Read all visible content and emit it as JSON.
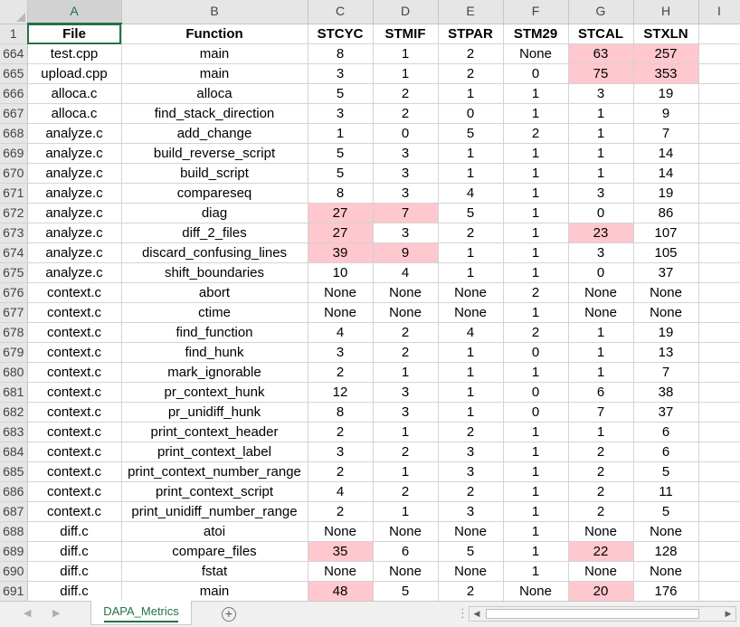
{
  "sheet": {
    "column_letters": [
      "A",
      "B",
      "C",
      "D",
      "E",
      "F",
      "G",
      "H",
      "I"
    ],
    "active_column": "A",
    "header_row": {
      "num": "1",
      "cells": [
        "File",
        "Function",
        "STCYC",
        "STMIF",
        "STPAR",
        "STM29",
        "STCAL",
        "STXLN",
        ""
      ]
    },
    "rows": [
      {
        "num": "664",
        "cells": [
          "test.cpp",
          "main",
          "8",
          "1",
          "2",
          "None",
          "63",
          "257",
          ""
        ]
      },
      {
        "num": "665",
        "cells": [
          "upload.cpp",
          "main",
          "3",
          "1",
          "2",
          "0",
          "75",
          "353",
          ""
        ]
      },
      {
        "num": "666",
        "cells": [
          "alloca.c",
          "alloca",
          "5",
          "2",
          "1",
          "1",
          "3",
          "19",
          ""
        ]
      },
      {
        "num": "667",
        "cells": [
          "alloca.c",
          "find_stack_direction",
          "3",
          "2",
          "0",
          "1",
          "1",
          "9",
          ""
        ]
      },
      {
        "num": "668",
        "cells": [
          "analyze.c",
          "add_change",
          "1",
          "0",
          "5",
          "2",
          "1",
          "7",
          ""
        ]
      },
      {
        "num": "669",
        "cells": [
          "analyze.c",
          "build_reverse_script",
          "5",
          "3",
          "1",
          "1",
          "1",
          "14",
          ""
        ]
      },
      {
        "num": "670",
        "cells": [
          "analyze.c",
          "build_script",
          "5",
          "3",
          "1",
          "1",
          "1",
          "14",
          ""
        ]
      },
      {
        "num": "671",
        "cells": [
          "analyze.c",
          "compareseq",
          "8",
          "3",
          "4",
          "1",
          "3",
          "19",
          ""
        ]
      },
      {
        "num": "672",
        "cells": [
          "analyze.c",
          "diag",
          "27",
          "7",
          "5",
          "1",
          "0",
          "86",
          ""
        ]
      },
      {
        "num": "673",
        "cells": [
          "analyze.c",
          "diff_2_files",
          "27",
          "3",
          "2",
          "1",
          "23",
          "107",
          ""
        ]
      },
      {
        "num": "674",
        "cells": [
          "analyze.c",
          "discard_confusing_lines",
          "39",
          "9",
          "1",
          "1",
          "3",
          "105",
          ""
        ]
      },
      {
        "num": "675",
        "cells": [
          "analyze.c",
          "shift_boundaries",
          "10",
          "4",
          "1",
          "1",
          "0",
          "37",
          ""
        ]
      },
      {
        "num": "676",
        "cells": [
          "context.c",
          "abort",
          "None",
          "None",
          "None",
          "2",
          "None",
          "None",
          ""
        ]
      },
      {
        "num": "677",
        "cells": [
          "context.c",
          "ctime",
          "None",
          "None",
          "None",
          "1",
          "None",
          "None",
          ""
        ]
      },
      {
        "num": "678",
        "cells": [
          "context.c",
          "find_function",
          "4",
          "2",
          "4",
          "2",
          "1",
          "19",
          ""
        ]
      },
      {
        "num": "679",
        "cells": [
          "context.c",
          "find_hunk",
          "3",
          "2",
          "1",
          "0",
          "1",
          "13",
          ""
        ]
      },
      {
        "num": "680",
        "cells": [
          "context.c",
          "mark_ignorable",
          "2",
          "1",
          "1",
          "1",
          "1",
          "7",
          ""
        ]
      },
      {
        "num": "681",
        "cells": [
          "context.c",
          "pr_context_hunk",
          "12",
          "3",
          "1",
          "0",
          "6",
          "38",
          ""
        ]
      },
      {
        "num": "682",
        "cells": [
          "context.c",
          "pr_unidiff_hunk",
          "8",
          "3",
          "1",
          "0",
          "7",
          "37",
          ""
        ]
      },
      {
        "num": "683",
        "cells": [
          "context.c",
          "print_context_header",
          "2",
          "1",
          "2",
          "1",
          "1",
          "6",
          ""
        ]
      },
      {
        "num": "684",
        "cells": [
          "context.c",
          "print_context_label",
          "3",
          "2",
          "3",
          "1",
          "2",
          "6",
          ""
        ]
      },
      {
        "num": "685",
        "cells": [
          "context.c",
          "print_context_number_range",
          "2",
          "1",
          "3",
          "1",
          "2",
          "5",
          ""
        ]
      },
      {
        "num": "686",
        "cells": [
          "context.c",
          "print_context_script",
          "4",
          "2",
          "2",
          "1",
          "2",
          "11",
          ""
        ]
      },
      {
        "num": "687",
        "cells": [
          "context.c",
          "print_unidiff_number_range",
          "2",
          "1",
          "3",
          "1",
          "2",
          "5",
          ""
        ]
      },
      {
        "num": "688",
        "cells": [
          "diff.c",
          "atoi",
          "None",
          "None",
          "None",
          "1",
          "None",
          "None",
          ""
        ]
      },
      {
        "num": "689",
        "cells": [
          "diff.c",
          "compare_files",
          "35",
          "6",
          "5",
          "1",
          "22",
          "128",
          ""
        ]
      },
      {
        "num": "690",
        "cells": [
          "diff.c",
          "fstat",
          "None",
          "None",
          "None",
          "1",
          "None",
          "None",
          ""
        ]
      },
      {
        "num": "691",
        "cells": [
          "diff.c",
          "main",
          "48",
          "5",
          "2",
          "None",
          "20",
          "176",
          ""
        ]
      }
    ],
    "highlights": [
      {
        "row": "664",
        "cols": [
          "G",
          "H"
        ]
      },
      {
        "row": "665",
        "cols": [
          "G",
          "H"
        ]
      },
      {
        "row": "672",
        "cols": [
          "C",
          "D"
        ]
      },
      {
        "row": "673",
        "cols": [
          "C",
          "G"
        ]
      },
      {
        "row": "674",
        "cols": [
          "C",
          "D"
        ]
      },
      {
        "row": "689",
        "cols": [
          "C",
          "G"
        ]
      },
      {
        "row": "691",
        "cols": [
          "C",
          "G"
        ]
      }
    ],
    "highlight_color": "#ffc7ce",
    "accent_color": "#217346"
  },
  "tabbar": {
    "sheet_tab": "DAPA_Metrics",
    "add_sheet": "+",
    "prev_icon": "triangle-left-icon",
    "next_icon": "triangle-right-icon",
    "separator": "⋮",
    "scroll_left": "◀",
    "scroll_right": "▶"
  }
}
